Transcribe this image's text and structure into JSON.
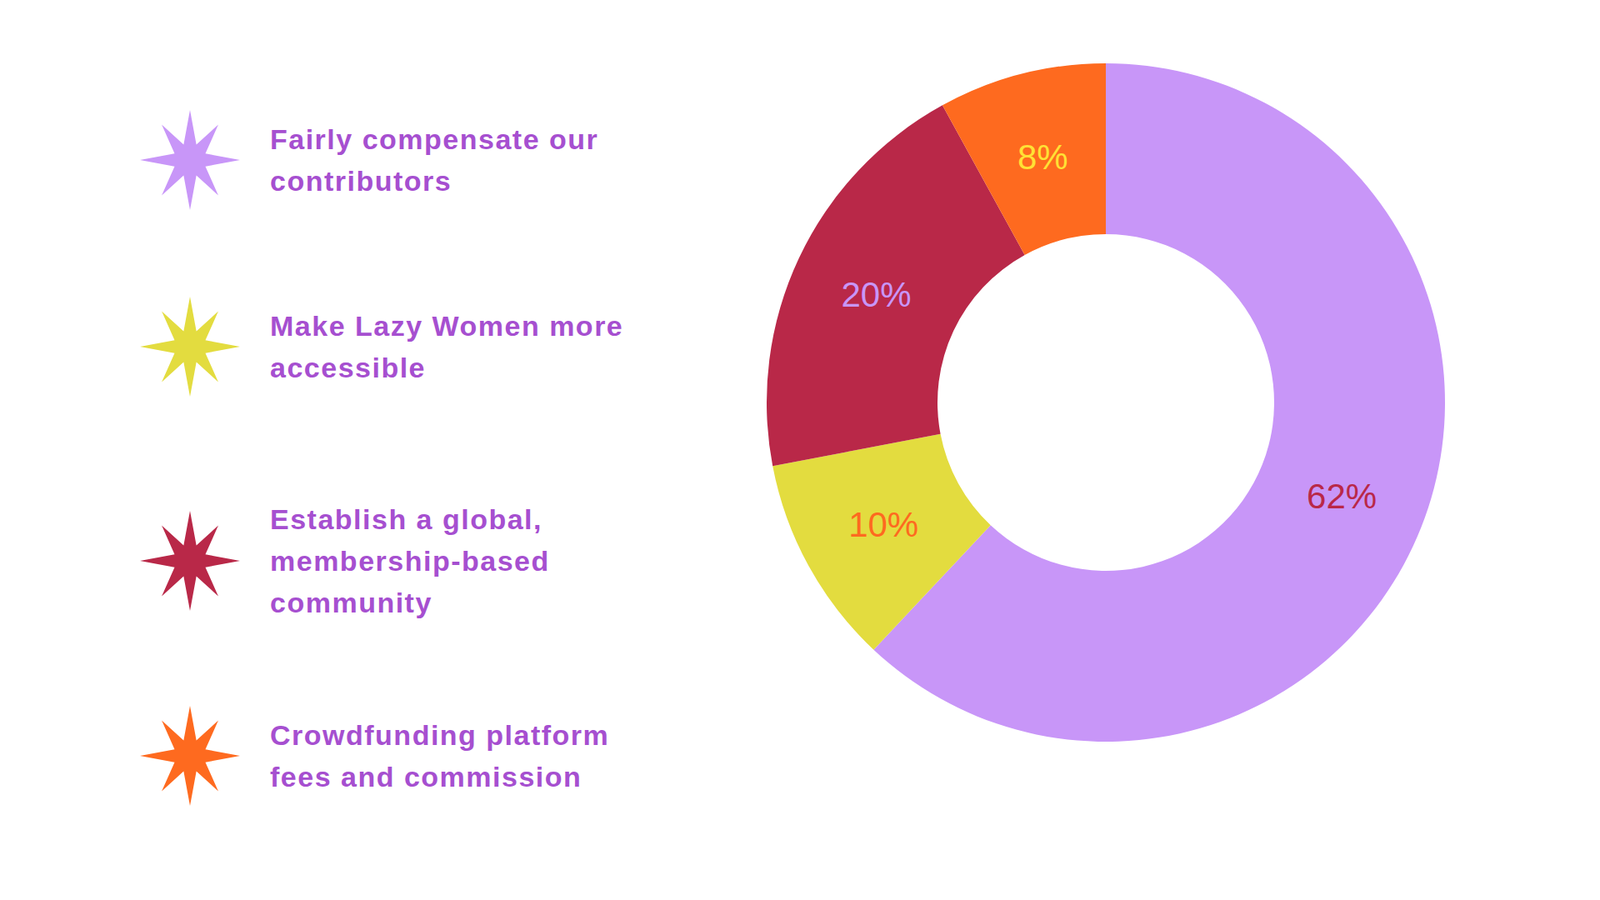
{
  "chart_data": {
    "type": "pie",
    "categories": [
      "Fairly compensate our contributors",
      "Make Lazy Women more accessible",
      "Establish a global, membership-based community",
      "Crowdfunding platform fees and commission"
    ],
    "values": [
      62,
      10,
      20,
      8
    ],
    "value_labels": [
      "62%",
      "10%",
      "20%",
      "8%"
    ],
    "colors": [
      "#c896f8",
      "#e3dc3f",
      "#b92848",
      "#fe6a1f"
    ],
    "data_labels": true,
    "legend": "left"
  }
}
